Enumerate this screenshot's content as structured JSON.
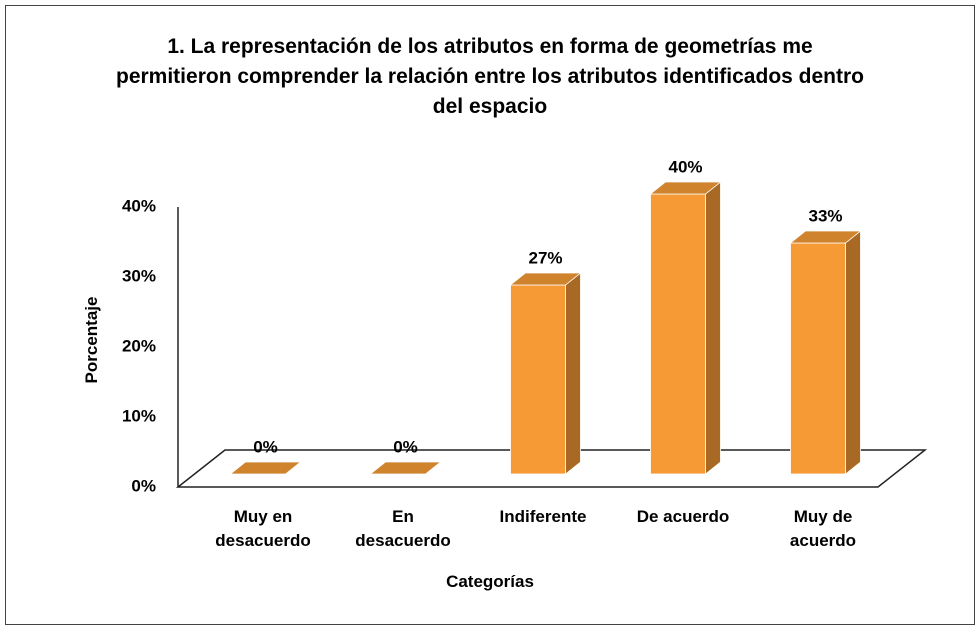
{
  "chart_data": {
    "type": "bar3d",
    "title": "1. La representación de los atributos en forma de geometrías me permitieron comprender la relación entre los atributos identificados dentro del espacio",
    "x_label": "Categorías",
    "y_label": "Porcentaje",
    "categories": [
      "Muy en desacuerdo",
      "En desacuerdo",
      "Indiferente",
      "De acuerdo",
      "Muy de acuerdo"
    ],
    "values": [
      0,
      0,
      27,
      40,
      33
    ],
    "value_labels": [
      "0%",
      "0%",
      "27%",
      "40%",
      "33%"
    ],
    "color": "#f59a35",
    "ylim": [
      0,
      40
    ],
    "yticks": [
      {
        "value": 0,
        "label": "0%"
      },
      {
        "value": 10,
        "label": "10%"
      },
      {
        "value": 20,
        "label": "20%"
      },
      {
        "value": 30,
        "label": "30%"
      },
      {
        "value": 40,
        "label": "40%"
      }
    ],
    "grid": false
  }
}
